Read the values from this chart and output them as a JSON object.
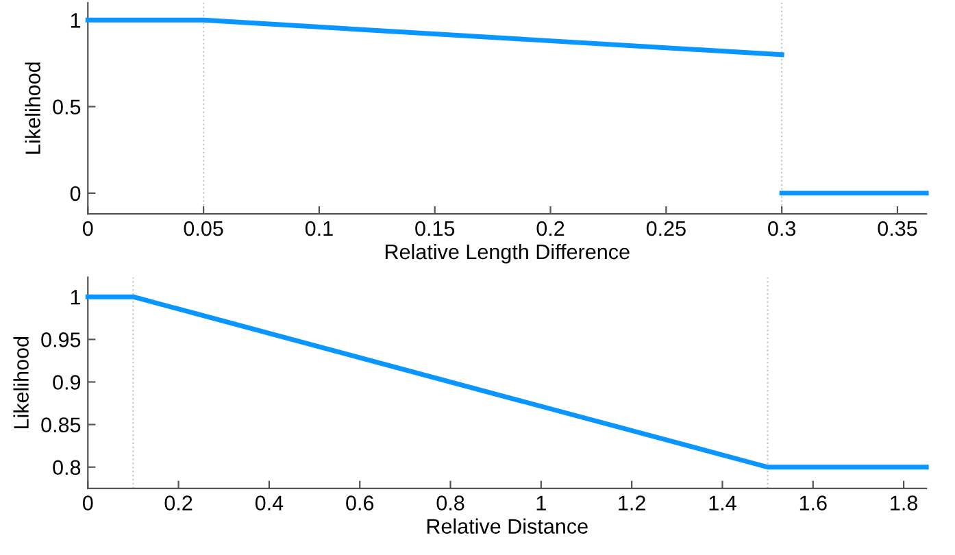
{
  "chart_data": [
    {
      "type": "line",
      "xlabel": "Relative Length Difference",
      "ylabel": "Likelihood",
      "series": [
        {
          "color": "#0a96ff",
          "x": [
            0,
            0.05,
            0.3
          ],
          "values": [
            1,
            1,
            0.8
          ]
        },
        {
          "color": "#0a96ff",
          "x": [
            0.3,
            0.3625
          ],
          "values": [
            0,
            0
          ]
        }
      ],
      "xlim": [
        0,
        0.3625
      ],
      "ylim": [
        -0.12,
        1.1
      ],
      "xticks": [
        0,
        0.05,
        0.1,
        0.15,
        0.2,
        0.25,
        0.3,
        0.35
      ],
      "yticks": [
        0,
        0.5,
        1
      ],
      "ref_lines": [
        {
          "axis": "x",
          "value": 0.05,
          "color": "#c8c8c8",
          "line_style": "dotted"
        },
        {
          "axis": "x",
          "value": 0.3,
          "color": "#c8c8c8",
          "line_style": "dotted"
        }
      ],
      "grid": false,
      "legend": false,
      "marker": "none",
      "line_style": "solid"
    },
    {
      "type": "line",
      "xlabel": "Relative Distance",
      "ylabel": "Likelihood",
      "series": [
        {
          "color": "#0a96ff",
          "x": [
            0,
            0.1,
            1.5,
            1.85
          ],
          "values": [
            1,
            1,
            0.8,
            0.8
          ]
        }
      ],
      "xlim": [
        0,
        1.85
      ],
      "ylim": [
        0.775,
        1.023
      ],
      "xticks": [
        0,
        0.2,
        0.4,
        0.6,
        0.8,
        1,
        1.2,
        1.4,
        1.6,
        1.8
      ],
      "yticks": [
        0.8,
        0.85,
        0.9,
        0.95,
        1
      ],
      "ref_lines": [
        {
          "axis": "x",
          "value": 0.1,
          "color": "#c8c8c8",
          "line_style": "dotted"
        },
        {
          "axis": "x",
          "value": 1.5,
          "color": "#c8c8c8",
          "line_style": "dotted"
        }
      ],
      "grid": false,
      "legend": false,
      "marker": "none",
      "line_style": "solid"
    }
  ]
}
